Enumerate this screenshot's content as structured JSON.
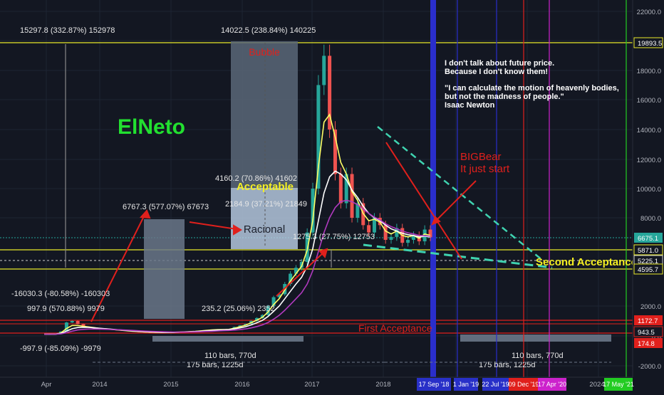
{
  "chart_data": {
    "type": "candlestick",
    "ylim": [
      -2000,
      22000
    ],
    "y_ticks": [
      "22000.0",
      "20000.0",
      "18000.0",
      "16000.0",
      "14000.0",
      "12000.0",
      "10000.0",
      "8000.0",
      "2000.0",
      "0.0",
      "-2000.0"
    ],
    "x_ticks": [
      "Apr",
      "2014",
      "2015",
      "2016",
      "2017",
      "2018",
      "2024"
    ],
    "price_badges": [
      {
        "text": "19893.5",
        "value": 19893.5,
        "style": "yellow-outline"
      },
      {
        "text": "6675.1",
        "value": 6675.1,
        "style": "teal"
      },
      {
        "text": "5871.0",
        "value": 5871.0,
        "style": "yellow-outline"
      },
      {
        "text": "5225.1",
        "value": 5225.1,
        "style": "white-outline"
      },
      {
        "text": "4595.7",
        "value": 4595.7,
        "style": "yellow-outline"
      },
      {
        "text": "1172.7",
        "value": 1172.7,
        "style": "red"
      },
      {
        "text": "943.5",
        "value": 943.5,
        "style": "red-outline"
      },
      {
        "text": "174.8",
        "value": 174.8,
        "style": "red"
      }
    ],
    "date_badges": [
      {
        "text": "17 Sep '18",
        "color": "#2830c8"
      },
      {
        "text": "1 Jan '19",
        "color": "#2830c8"
      },
      {
        "text": "22 Jul '19",
        "color": "#2830c8"
      },
      {
        "text": "09 Dec '19",
        "color": "#e0201c"
      },
      {
        "text": "17 Apr '20",
        "color": "#cc22cc"
      },
      {
        "text": "17 May '21",
        "color": "#22cc22"
      }
    ],
    "annotations": {
      "watermark": "ElNeto",
      "bubble": "Bubble",
      "acceptable": "Acceptable",
      "racional": "Racional",
      "bigbear": [
        "BIGBear",
        "It just start"
      ],
      "second_acceptance": "Second Acceptance",
      "first_acceptance": "First Acceptance",
      "quote": [
        "I don't talk about future price.",
        "Because I don't know them!",
        "",
        "\"I can calculate the motion of heavenly bodies,",
        "but not the madness of people.\"",
        "Isaac Newton"
      ]
    },
    "measurements": [
      "15297.8 (332.87%) 152978",
      "14022.5 (238.84%) 140225",
      "4160.2 (70.86%) 41602",
      "2184.9 (37.21%) 21849",
      "6767.3 (577.07%) 67673",
      "1275.3 (27.75%) 12753",
      "-16030.3 (-80.58%) -160303",
      "997.9 (570.88%) 9979",
      "235.2 (25.06%) 2352",
      "-997.9 (-85.09%) -9979",
      "110 bars, 770d",
      "175 bars, 1225d",
      "110 bars, 770d",
      "175 bars, 1225d"
    ],
    "series": [
      {
        "name": "price",
        "values": [
          120,
          125,
          130,
          300,
          900,
          1000,
          800,
          600,
          550,
          500,
          480,
          450,
          420,
          380,
          360,
          330,
          300,
          280,
          260,
          250,
          240,
          230,
          240,
          250,
          260,
          280,
          300,
          320,
          350,
          380,
          410,
          430,
          440,
          450,
          600,
          700,
          800,
          1000,
          1200,
          1400,
          2000,
          2600,
          2800,
          3500,
          4200,
          4600,
          5000,
          7000,
          10000,
          17000,
          19000,
          14000,
          11000,
          9000,
          11000,
          8000,
          9000,
          7500,
          7000,
          8000,
          7500,
          6500,
          6700,
          7300,
          6300,
          6500,
          6800,
          6400,
          7200,
          6675
        ]
      },
      {
        "name": "ma-fast",
        "values": [
          120,
          122,
          126,
          200,
          500,
          700,
          700,
          650,
          600,
          550,
          500,
          470,
          440,
          400,
          370,
          340,
          310,
          290,
          270,
          255,
          245,
          235,
          238,
          245,
          255,
          270,
          290,
          310,
          340,
          370,
          400,
          420,
          430,
          440,
          520,
          620,
          720,
          880,
          1050,
          1250,
          1600,
          2100,
          2500,
          3100,
          3700,
          4200,
          4700,
          5800,
          7800,
          11500,
          14500,
          15000,
          13500,
          11800,
          11000,
          9800,
          9200,
          8300,
          7800,
          7900,
          7700,
          7100,
          6900,
          7100,
          6800,
          6700,
          6800,
          6600,
          6900,
          6800
        ]
      },
      {
        "name": "ma-slow",
        "values": [
          120,
          121,
          124,
          160,
          330,
          480,
          560,
          580,
          570,
          540,
          510,
          480,
          450,
          420,
          390,
          360,
          330,
          305,
          285,
          268,
          255,
          245,
          243,
          245,
          250,
          262,
          278,
          295,
          320,
          345,
          370,
          395,
          410,
          425,
          470,
          540,
          620,
          740,
          880,
          1040,
          1300,
          1650,
          2000,
          2500,
          3000,
          3500,
          3950,
          4700,
          5900,
          7800,
          9700,
          10800,
          11200,
          11000,
          10600,
          9900,
          9400,
          8800,
          8300,
          8000,
          7800,
          7500,
          7250,
          7100,
          6950,
          6850,
          6800,
          6700,
          6750,
          6700
        ]
      },
      {
        "name": "ma-long",
        "values": [
          120,
          120,
          122,
          140,
          220,
          320,
          400,
          440,
          460,
          460,
          455,
          445,
          430,
          415,
          400,
          385,
          365,
          345,
          325,
          308,
          293,
          280,
          270,
          262,
          258,
          258,
          262,
          270,
          282,
          298,
          315,
          333,
          350,
          366,
          390,
          425,
          470,
          540,
          630,
          740,
          900,
          1120,
          1380,
          1720,
          2100,
          2500,
          2900,
          3500,
          4400,
          5700,
          7000,
          8000,
          8700,
          9100,
          9200,
          9100,
          8900,
          8600,
          8300,
          8050,
          7850,
          7600,
          7400,
          7250,
          7100,
          6980,
          6900,
          6800,
          6780,
          6750
        ]
      }
    ]
  }
}
